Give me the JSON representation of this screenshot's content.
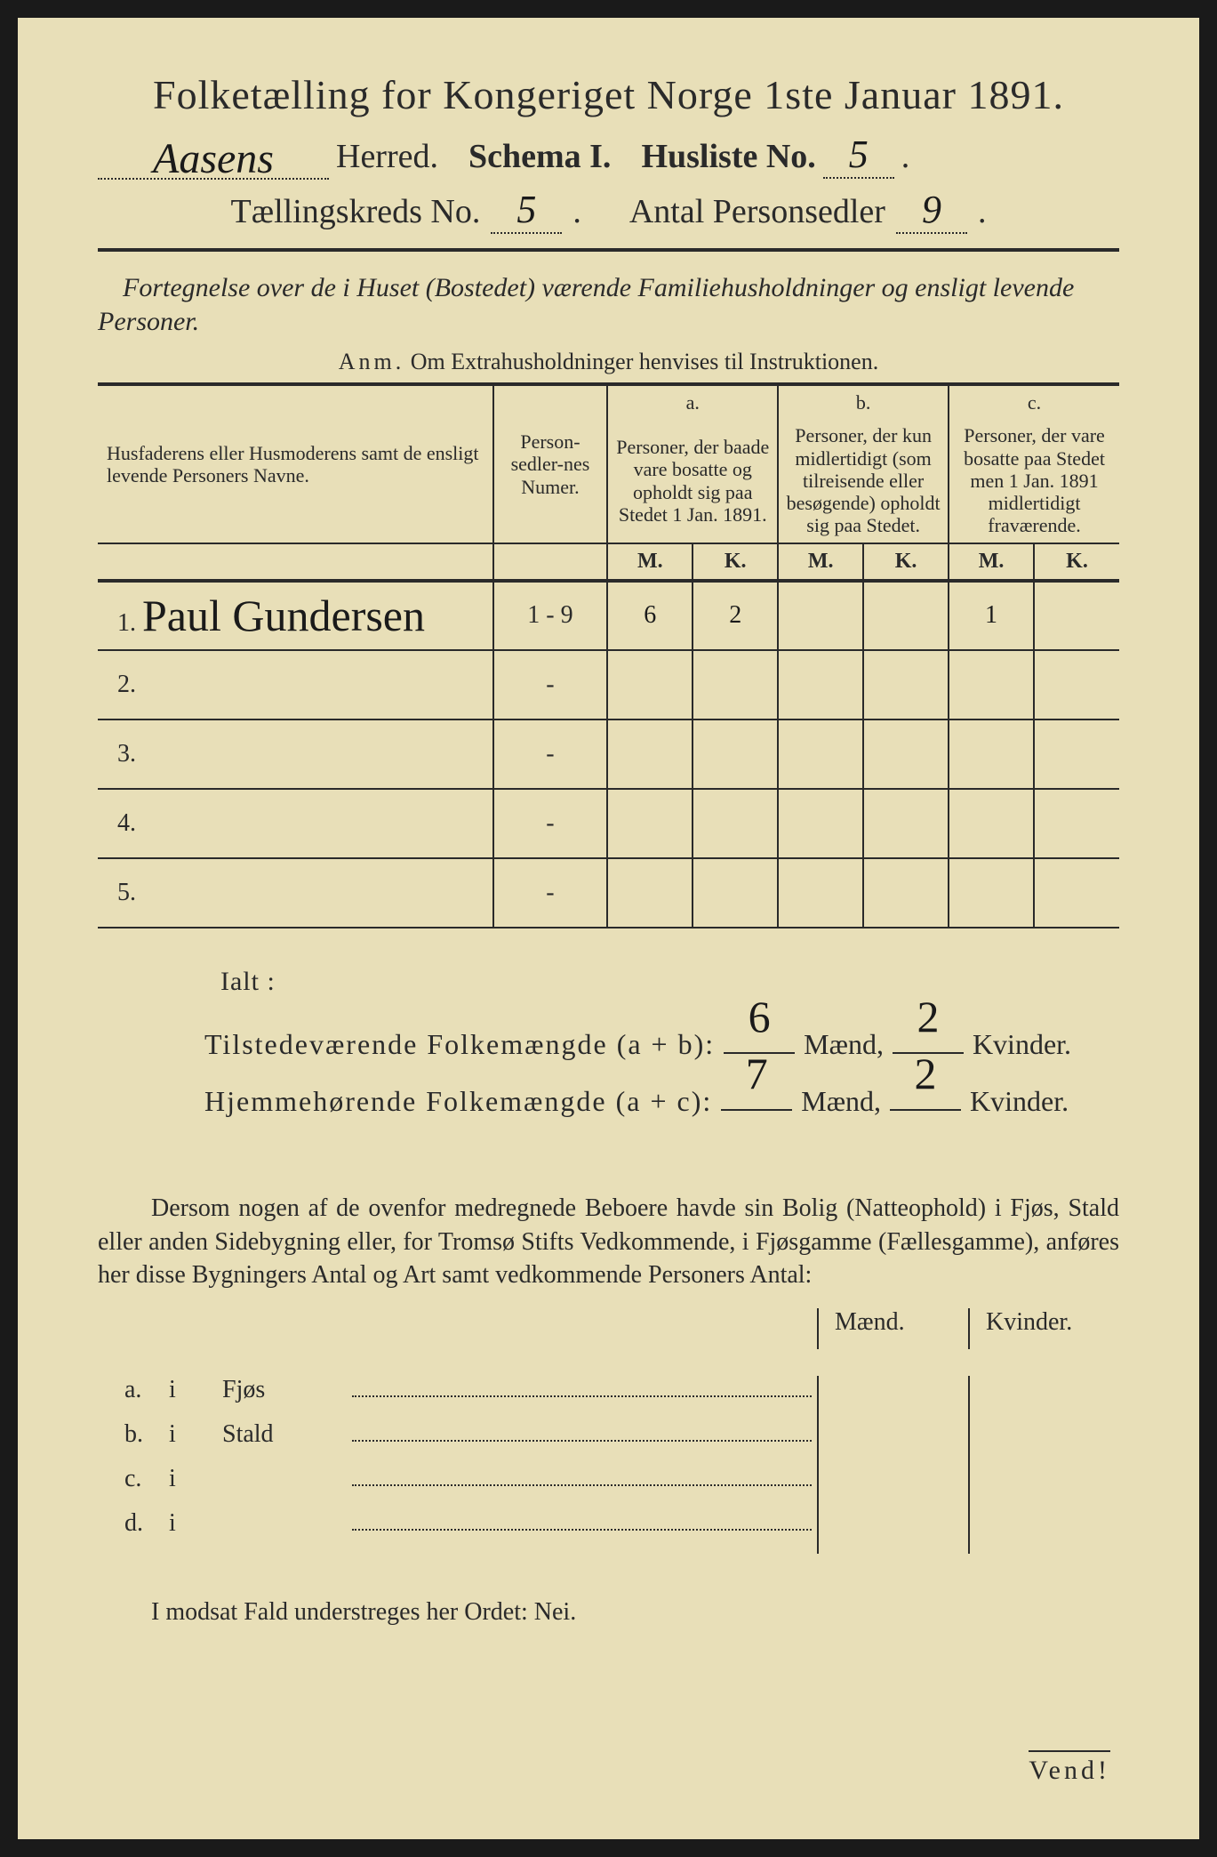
{
  "header": {
    "title": "Folketælling for Kongeriget Norge 1ste Januar 1891.",
    "herred_handwritten": "Aasens",
    "herred_label": "Herred.",
    "schema_label": "Schema I.",
    "husliste_label": "Husliste No.",
    "husliste_no": "5",
    "kreds_label": "Tællingskreds No.",
    "kreds_no": "5",
    "personsedler_label": "Antal Personsedler",
    "personsedler_no": "9"
  },
  "subtitle": "Fortegnelse over de i Huset (Bostedet) værende Familiehusholdninger og ensligt levende Personer.",
  "anm_label": "Anm.",
  "anm_text": "Om Extrahusholdninger henvises til Instruktionen.",
  "columns": {
    "name_header": "Husfaderens eller Husmoderens samt de ensligt levende Personers Navne.",
    "numer_header": "Person-sedler-nes Numer.",
    "a_letter": "a.",
    "a_header": "Personer, der baade vare bosatte og opholdt sig paa Stedet 1 Jan. 1891.",
    "b_letter": "b.",
    "b_header": "Personer, der kun midlertidigt (som tilreisende eller besøgende) opholdt sig paa Stedet.",
    "c_letter": "c.",
    "c_header": "Personer, der vare bosatte paa Stedet men 1 Jan. 1891 midlertidigt fraværende.",
    "m": "M.",
    "k": "K."
  },
  "rows": [
    {
      "num": "1.",
      "name": "Paul Gundersen",
      "numer": "1 - 9",
      "a_m": "6",
      "a_k": "2",
      "b_m": "",
      "b_k": "",
      "c_m": "1",
      "c_k": ""
    },
    {
      "num": "2.",
      "name": "",
      "numer": "-",
      "a_m": "",
      "a_k": "",
      "b_m": "",
      "b_k": "",
      "c_m": "",
      "c_k": ""
    },
    {
      "num": "3.",
      "name": "",
      "numer": "-",
      "a_m": "",
      "a_k": "",
      "b_m": "",
      "b_k": "",
      "c_m": "",
      "c_k": ""
    },
    {
      "num": "4.",
      "name": "",
      "numer": "-",
      "a_m": "",
      "a_k": "",
      "b_m": "",
      "b_k": "",
      "c_m": "",
      "c_k": ""
    },
    {
      "num": "5.",
      "name": "",
      "numer": "-",
      "a_m": "",
      "a_k": "",
      "b_m": "",
      "b_k": "",
      "c_m": "",
      "c_k": ""
    }
  ],
  "totals": {
    "ialt": "Ialt :",
    "line1_label": "Tilstedeværende Folkemængde (a + b):",
    "line1_m": "6",
    "line1_k": "2",
    "line2_label": "Hjemmehørende Folkemængde (a + c):",
    "line2_m": "7",
    "line2_k": "2",
    "maend": "Mænd,",
    "kvinder": "Kvinder."
  },
  "body_text": "Dersom nogen af de ovenfor medregnede Beboere havde sin Bolig (Natteophold) i Fjøs, Stald eller anden Sidebygning eller, for Tromsø Stifts Vedkommende, i Fjøsgamme (Fællesgamme), anføres her disse Bygningers Antal og Art samt vedkommende Personers Antal:",
  "mk_header": {
    "maend": "Mænd.",
    "kvinder": "Kvinder."
  },
  "categories": [
    {
      "label": "a.",
      "i": "i",
      "name": "Fjøs"
    },
    {
      "label": "b.",
      "i": "i",
      "name": "Stald"
    },
    {
      "label": "c.",
      "i": "i",
      "name": ""
    },
    {
      "label": "d.",
      "i": "i",
      "name": ""
    }
  ],
  "nei_line": "I modsat Fald understreges her Ordet: Nei.",
  "vend": "Vend!"
}
